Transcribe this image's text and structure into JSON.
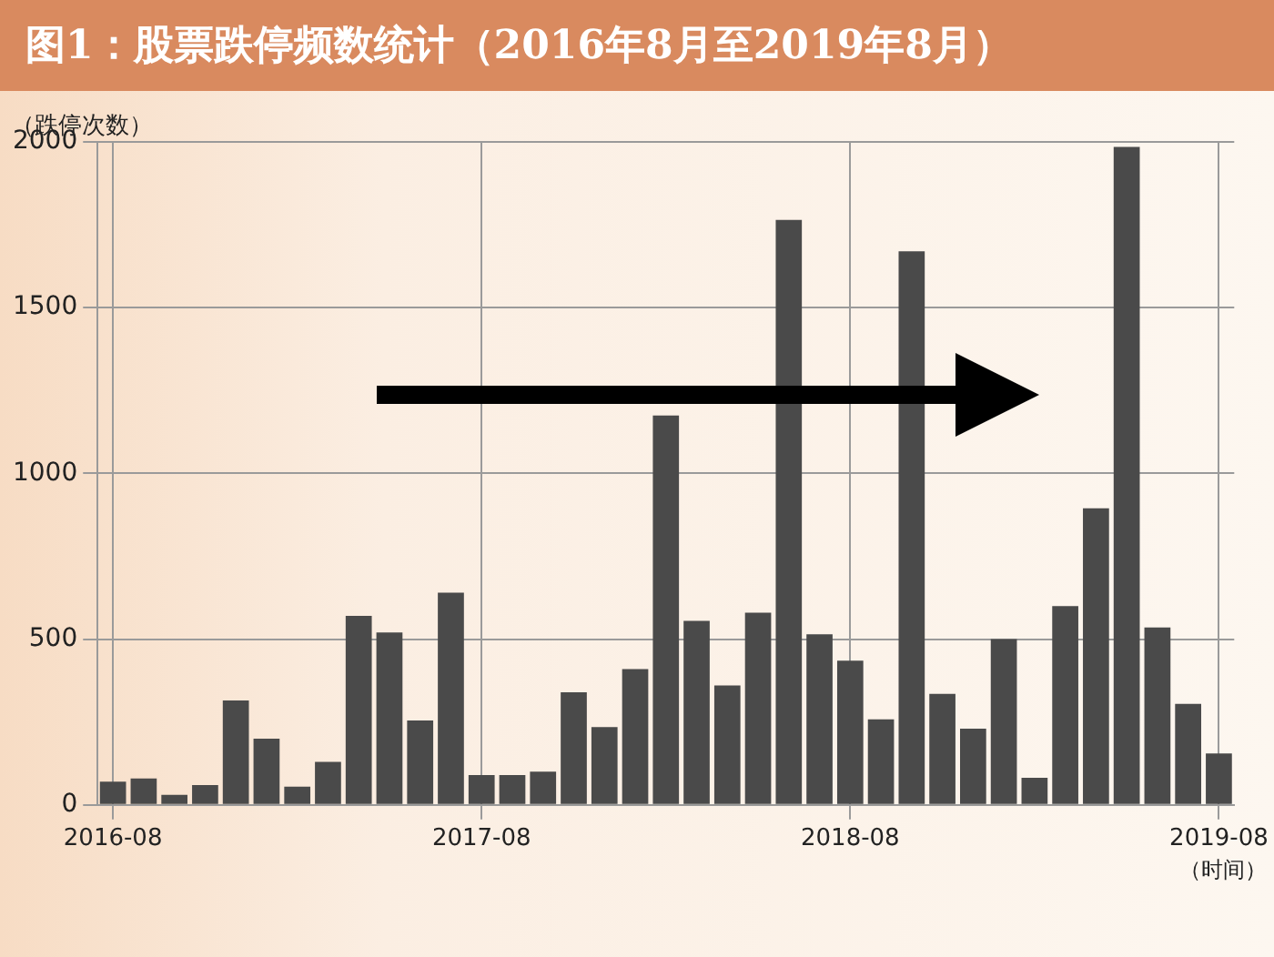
{
  "chart_data": {
    "type": "bar",
    "title": "图1：股票跌停频数统计（2016年8月至2019年8月）",
    "ylabel": "（跌停次数）",
    "xlabel": "（时间）",
    "categories": [
      "2016-08",
      null,
      null,
      null,
      null,
      null,
      null,
      null,
      null,
      null,
      null,
      null,
      "2017-08",
      null,
      null,
      null,
      null,
      null,
      null,
      null,
      null,
      null,
      null,
      null,
      "2018-08",
      null,
      null,
      null,
      null,
      null,
      null,
      null,
      null,
      null,
      null,
      null,
      "2019-08"
    ],
    "series": [
      {
        "color": "#4a4a4a",
        "values": [
          70,
          80,
          30,
          60,
          315,
          200,
          55,
          130,
          570,
          520,
          255,
          640,
          90,
          90,
          100,
          340,
          235,
          410,
          1175,
          555,
          360,
          580,
          1765,
          515,
          435,
          258,
          1670,
          335,
          230,
          500,
          82,
          600,
          895,
          1985,
          535,
          305,
          155
        ]
      }
    ],
    "ylim": [
      0,
      2000
    ],
    "yticks": [
      0,
      500,
      1000,
      1500,
      2000
    ],
    "grid": true,
    "legend": false
  }
}
